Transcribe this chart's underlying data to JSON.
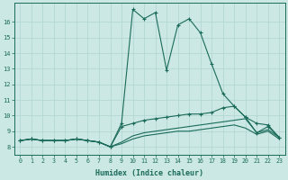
{
  "xlabel": "Humidex (Indice chaleur)",
  "bg_color": "#cce8e4",
  "grid_color": "#b0d4d0",
  "line_color": "#1a6b5a",
  "xlim": [
    -0.5,
    23.5
  ],
  "ylim": [
    7.5,
    17.2
  ],
  "xticks": [
    0,
    1,
    2,
    3,
    4,
    5,
    6,
    7,
    8,
    9,
    10,
    11,
    12,
    13,
    14,
    15,
    16,
    17,
    18,
    19,
    20,
    21,
    22,
    23
  ],
  "yticks": [
    8,
    9,
    10,
    11,
    12,
    13,
    14,
    15,
    16
  ],
  "lines": [
    {
      "x": [
        0,
        1,
        2,
        3,
        4,
        5,
        6,
        7,
        8,
        9,
        10,
        11,
        12,
        13,
        14,
        15,
        16,
        17,
        18,
        19,
        20,
        21,
        22,
        23
      ],
      "y": [
        8.4,
        8.5,
        8.4,
        8.4,
        8.4,
        8.5,
        8.4,
        8.3,
        8.0,
        9.5,
        16.8,
        16.2,
        16.6,
        12.9,
        15.8,
        16.2,
        15.3,
        13.3,
        11.4,
        10.6,
        9.9,
        8.9,
        9.3,
        8.6
      ],
      "marker": true
    },
    {
      "x": [
        0,
        1,
        2,
        3,
        4,
        5,
        6,
        7,
        8,
        9,
        10,
        11,
        12,
        13,
        14,
        15,
        16,
        17,
        18,
        19,
        20,
        21,
        22,
        23
      ],
      "y": [
        8.4,
        8.5,
        8.4,
        8.4,
        8.4,
        8.5,
        8.4,
        8.3,
        8.0,
        9.3,
        9.5,
        9.7,
        9.8,
        9.9,
        10.0,
        10.1,
        10.1,
        10.2,
        10.5,
        10.6,
        9.9,
        9.5,
        9.4,
        8.6
      ],
      "marker": true
    },
    {
      "x": [
        0,
        1,
        2,
        3,
        4,
        5,
        6,
        7,
        8,
        9,
        10,
        11,
        12,
        13,
        14,
        15,
        16,
        17,
        18,
        19,
        20,
        21,
        22,
        23
      ],
      "y": [
        8.4,
        8.5,
        8.4,
        8.4,
        8.4,
        8.5,
        8.4,
        8.3,
        8.0,
        8.3,
        8.7,
        8.9,
        9.0,
        9.1,
        9.2,
        9.3,
        9.4,
        9.5,
        9.6,
        9.7,
        9.8,
        8.9,
        9.1,
        8.6
      ],
      "marker": false
    },
    {
      "x": [
        0,
        1,
        2,
        3,
        4,
        5,
        6,
        7,
        8,
        9,
        10,
        11,
        12,
        13,
        14,
        15,
        16,
        17,
        18,
        19,
        20,
        21,
        22,
        23
      ],
      "y": [
        8.4,
        8.5,
        8.4,
        8.4,
        8.4,
        8.5,
        8.4,
        8.3,
        8.0,
        8.2,
        8.5,
        8.7,
        8.8,
        8.9,
        9.0,
        9.0,
        9.1,
        9.2,
        9.3,
        9.4,
        9.2,
        8.8,
        9.0,
        8.5
      ],
      "marker": false
    }
  ]
}
